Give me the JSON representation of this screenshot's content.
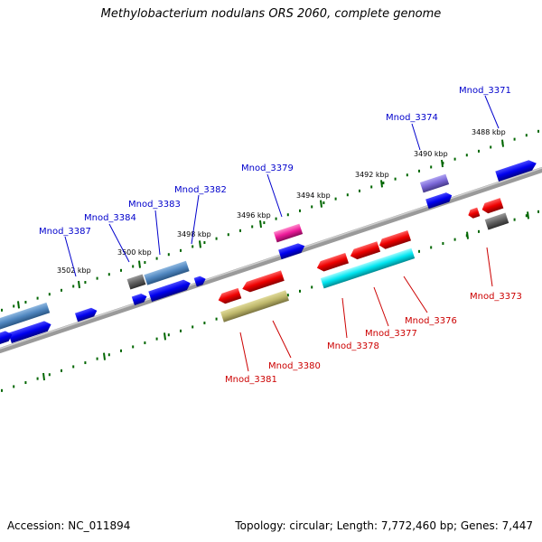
{
  "title": "Methylobacterium nodulans ORS 2060, complete genome",
  "footer": {
    "accession": "Accession: NC_011894",
    "topology": "Topology: circular; Length: 7,772,460 bp; Genes: 7,447"
  },
  "kbp_labels": [
    "3488 kbp",
    "3490 kbp",
    "3492 kbp",
    "3494 kbp",
    "3496 kbp",
    "3498 kbp",
    "3500 kbp",
    "3502 kbp"
  ],
  "gene_labels_top": [
    "Mnod_3371",
    "Mnod_3374",
    "Mnod_3379",
    "Mnod_3382",
    "Mnod_3383",
    "Mnod_3384",
    "Mnod_3387"
  ],
  "gene_labels_bottom": [
    "Mnod_3373",
    "Mnod_3376",
    "Mnod_3377",
    "Mnod_3378",
    "Mnod_3380",
    "Mnod_3381"
  ],
  "colors": {
    "label_top": "#0000cc",
    "label_bottom": "#cc0000",
    "tick": "#006600",
    "backbone": "#888888"
  }
}
